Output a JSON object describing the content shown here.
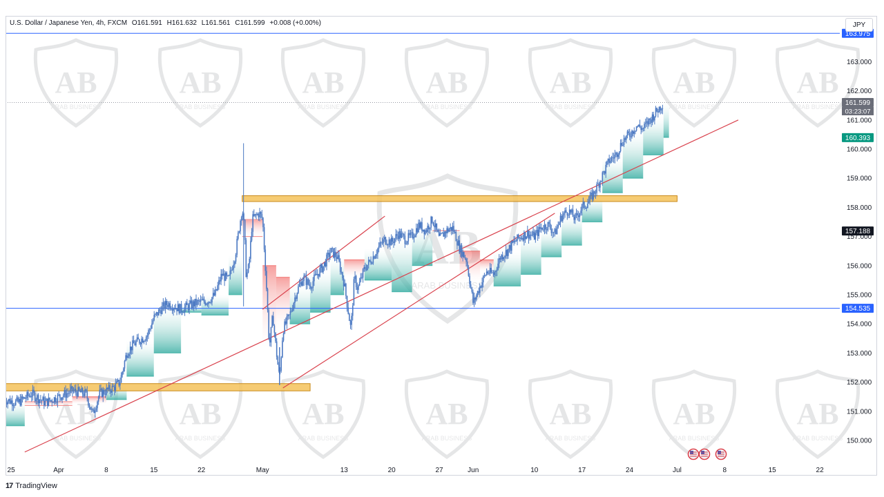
{
  "header": {
    "symbol": "U.S. Dollar / Japanese Yen, 4h, FXCM",
    "open": "O161.591",
    "high": "H161.632",
    "low": "L161.561",
    "close": "C161.599",
    "change": "+0.008 (+0.00%)"
  },
  "currency_button": "JPY",
  "footer": {
    "brand": "TradingView",
    "logo": "17"
  },
  "watermark": {
    "text": "ARAB BUSINESS",
    "emblem": "AB"
  },
  "colors": {
    "candle": "#4a78c2",
    "support_up": "#26a69a",
    "support_down": "#ef5350",
    "zone": "#f5c25a",
    "zone_border": "#c98a1c",
    "trendline": "#d9414c",
    "hline": "#2962ff",
    "price_label_current": "#6a6d78",
    "price_label_green": "#089981",
    "price_label_black": "#131722",
    "price_label_blue": "#2962ff"
  },
  "chart_data": {
    "type": "line",
    "title": "U.S. Dollar / Japanese Yen, 4h, FXCM",
    "ylim": [
      149.5,
      164.2
    ],
    "y_ticks": [
      "150.000",
      "151.000",
      "152.000",
      "153.000",
      "154.000",
      "155.000",
      "156.000",
      "157.000",
      "158.000",
      "159.000",
      "160.000",
      "161.000",
      "162.000",
      "163.000"
    ],
    "x_ticks": [
      {
        "label": "25",
        "d": -7
      },
      {
        "label": "Apr",
        "d": 0
      },
      {
        "label": "8",
        "d": 7
      },
      {
        "label": "15",
        "d": 14
      },
      {
        "label": "22",
        "d": 21
      },
      {
        "label": "May",
        "d": 30
      },
      {
        "label": "13",
        "d": 42
      },
      {
        "label": "20",
        "d": 49
      },
      {
        "label": "27",
        "d": 56
      },
      {
        "label": "Jun",
        "d": 61
      },
      {
        "label": "10",
        "d": 70
      },
      {
        "label": "17",
        "d": 77
      },
      {
        "label": "24",
        "d": 84
      },
      {
        "label": "Jul",
        "d": 91
      },
      {
        "label": "8",
        "d": 98
      },
      {
        "label": "15",
        "d": 105
      },
      {
        "label": "22",
        "d": 112
      }
    ],
    "price_path": [
      [
        -8,
        151.4
      ],
      [
        -6,
        151.3
      ],
      [
        -4,
        151.6
      ],
      [
        -2,
        151.3
      ],
      [
        0,
        151.5
      ],
      [
        2,
        151.7
      ],
      [
        4,
        151.6
      ],
      [
        5,
        150.9
      ],
      [
        6,
        151.6
      ],
      [
        8,
        151.8
      ],
      [
        9,
        152.0
      ],
      [
        10,
        153.0
      ],
      [
        11,
        153.3
      ],
      [
        13,
        153.6
      ],
      [
        14,
        154.2
      ],
      [
        15,
        154.5
      ],
      [
        16,
        154.7
      ],
      [
        18,
        154.5
      ],
      [
        20,
        154.7
      ],
      [
        22,
        154.8
      ],
      [
        23,
        155.0
      ],
      [
        24,
        155.7
      ],
      [
        25,
        155.5
      ],
      [
        26,
        156.4
      ],
      [
        27,
        158.0
      ],
      [
        27.3,
        157.3
      ],
      [
        27.6,
        155.6
      ],
      [
        28,
        156.0
      ],
      [
        28.5,
        157.6
      ],
      [
        29.5,
        157.8
      ],
      [
        30,
        157.6
      ],
      [
        30.5,
        155.6
      ],
      [
        31,
        153.2
      ],
      [
        31.5,
        154.3
      ],
      [
        32,
        153.1
      ],
      [
        32.5,
        152.1
      ],
      [
        33,
        153.8
      ],
      [
        34,
        154.3
      ],
      [
        35,
        155.1
      ],
      [
        36,
        155.6
      ],
      [
        37,
        155.3
      ],
      [
        38,
        155.7
      ],
      [
        39,
        156.0
      ],
      [
        40,
        156.5
      ],
      [
        41,
        156.3
      ],
      [
        42,
        155.4
      ],
      [
        43,
        153.8
      ],
      [
        43.5,
        155.6
      ],
      [
        44,
        155.2
      ],
      [
        45,
        155.9
      ],
      [
        46,
        156.2
      ],
      [
        47,
        156.6
      ],
      [
        48,
        156.9
      ],
      [
        49,
        156.8
      ],
      [
        50,
        157.1
      ],
      [
        51,
        156.9
      ],
      [
        52,
        157.0
      ],
      [
        53,
        157.4
      ],
      [
        54,
        157.2
      ],
      [
        55,
        157.6
      ],
      [
        56,
        156.9
      ],
      [
        57,
        157.2
      ],
      [
        58,
        157.3
      ],
      [
        59,
        156.6
      ],
      [
        60,
        156.2
      ],
      [
        61,
        154.7
      ],
      [
        62,
        155.3
      ],
      [
        63,
        155.8
      ],
      [
        64,
        155.7
      ],
      [
        65,
        156.3
      ],
      [
        66,
        156.5
      ],
      [
        67,
        156.8
      ],
      [
        68,
        157.0
      ],
      [
        69,
        157.1
      ],
      [
        70,
        157.0
      ],
      [
        71,
        157.3
      ],
      [
        72,
        157.4
      ],
      [
        73,
        157.1
      ],
      [
        74,
        157.7
      ],
      [
        75,
        157.9
      ],
      [
        76,
        157.6
      ],
      [
        77,
        158.0
      ],
      [
        78,
        158.2
      ],
      [
        79,
        158.6
      ],
      [
        80,
        159.1
      ],
      [
        81,
        159.6
      ],
      [
        82,
        159.8
      ],
      [
        83,
        160.3
      ],
      [
        84,
        160.5
      ],
      [
        85,
        160.8
      ],
      [
        86,
        160.7
      ],
      [
        87,
        161.0
      ],
      [
        88,
        161.3
      ],
      [
        89,
        161.6
      ]
    ],
    "support_trail": [
      [
        -8,
        150.5,
        "up"
      ],
      [
        -5,
        151.2,
        "down"
      ],
      [
        2,
        151.5,
        "down"
      ],
      [
        7,
        151.4,
        "up"
      ],
      [
        10,
        152.2,
        "up"
      ],
      [
        14,
        153.0,
        "up"
      ],
      [
        18,
        154.4,
        "up"
      ],
      [
        21,
        154.3,
        "up"
      ],
      [
        25,
        155.0,
        "up"
      ],
      [
        27,
        157.0,
        "down"
      ],
      [
        30,
        156.0,
        "down"
      ],
      [
        32,
        155.6,
        "down"
      ],
      [
        34,
        154.0,
        "up"
      ],
      [
        37,
        154.4,
        "up"
      ],
      [
        40,
        155.0,
        "up"
      ],
      [
        42,
        156.2,
        "down"
      ],
      [
        45,
        155.5,
        "up"
      ],
      [
        49,
        155.1,
        "up"
      ],
      [
        52,
        156.0,
        "up"
      ],
      [
        55,
        157.2,
        "down"
      ],
      [
        59,
        156.5,
        "down"
      ],
      [
        62,
        156.2,
        "down"
      ],
      [
        64,
        155.3,
        "up"
      ],
      [
        68,
        155.7,
        "up"
      ],
      [
        71,
        156.3,
        "up"
      ],
      [
        74,
        156.7,
        "up"
      ],
      [
        77,
        157.5,
        "up"
      ],
      [
        80,
        158.5,
        "up"
      ],
      [
        83,
        159.0,
        "up"
      ],
      [
        86,
        159.8,
        "up"
      ],
      [
        89,
        160.4,
        "up"
      ]
    ],
    "horizontal_lines": [
      {
        "y": 163.975,
        "label": "163.975"
      },
      {
        "y": 154.535,
        "label": "154.535"
      }
    ],
    "zones": [
      {
        "y0": 158.2,
        "y1": 158.4,
        "d0": 27,
        "d1": 91
      },
      {
        "y0": 151.7,
        "y1": 151.95,
        "d0": -10,
        "d1": 37
      }
    ],
    "trendlines": [
      {
        "d0": -5,
        "y0": 149.6,
        "d1": 100,
        "y1": 161.0
      },
      {
        "d0": 30,
        "y0": 154.5,
        "d1": 48,
        "y1": 157.7
      },
      {
        "d0": 33,
        "y0": 151.8,
        "d1": 73,
        "y1": 157.8
      }
    ],
    "price_labels": [
      {
        "y": 161.599,
        "text": "161.599",
        "sub": "03:23:07",
        "kind": "current"
      },
      {
        "y": 160.393,
        "text": "160.393",
        "kind": "green"
      },
      {
        "y": 157.188,
        "text": "157.188",
        "kind": "black"
      }
    ]
  }
}
